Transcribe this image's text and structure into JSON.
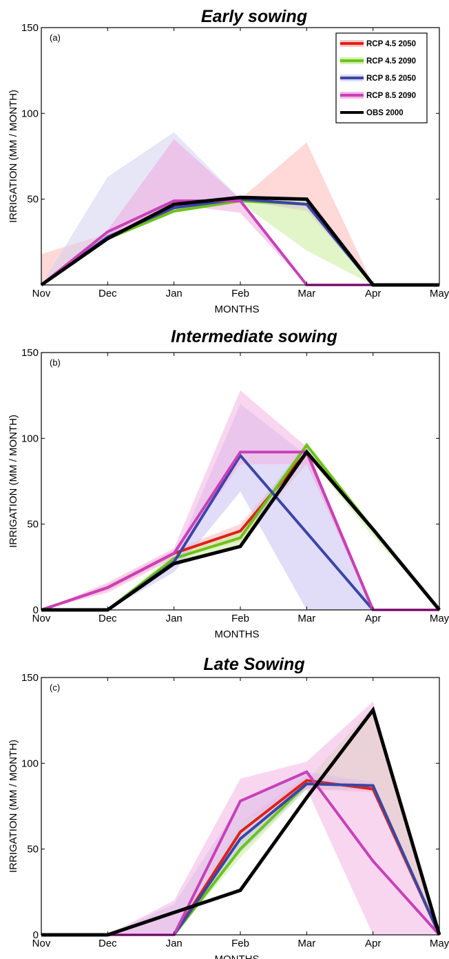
{
  "chart_data": [
    {
      "type": "line",
      "title": "Early sowing",
      "panel_label": "(a)",
      "xlabel": "MONTHS",
      "ylabel": "IRRIGATION (MM / MONTH)",
      "categories": [
        "Nov",
        "Dec",
        "Jan",
        "Feb",
        "Mar",
        "Apr",
        "May"
      ],
      "ylim": [
        0,
        150
      ],
      "yticks": [
        50,
        100,
        150
      ],
      "legend": "top-right",
      "grid": false,
      "series": [
        {
          "name": "RCP 4.5 2050",
          "color": "#e0201b",
          "band_color": "#ffb8b8",
          "values": [
            0,
            27,
            45,
            50,
            47,
            0,
            0
          ],
          "band_low": [
            0,
            27,
            43,
            49,
            43,
            0,
            0
          ],
          "band_high": [
            18,
            30,
            50,
            50,
            83,
            0,
            0
          ]
        },
        {
          "name": "RCP 4.5 2090",
          "color": "#6cc21a",
          "band_color": "#c8ec9c",
          "values": [
            0,
            27,
            43,
            49,
            47,
            0,
            0
          ],
          "band_low": [
            0,
            26,
            42,
            48,
            20,
            0,
            0
          ],
          "band_high": [
            0,
            28,
            46,
            50,
            49,
            0,
            0
          ]
        },
        {
          "name": "RCP 8.5 2050",
          "color": "#3a45a8",
          "band_color": "#d2d2f0",
          "values": [
            0,
            28,
            45,
            50,
            47,
            0,
            0
          ],
          "band_low": [
            0,
            27,
            44,
            49,
            44,
            0,
            0
          ],
          "band_high": [
            0,
            63,
            89,
            50,
            50,
            0,
            0
          ]
        },
        {
          "name": "RCP 8.5 2090",
          "color": "#c840b8",
          "band_color": "#f0a8e0",
          "values": [
            0,
            31,
            49,
            49,
            0,
            0,
            0
          ],
          "band_low": [
            0,
            28,
            47,
            42,
            0,
            0,
            0
          ],
          "band_high": [
            0,
            32,
            85,
            50,
            0,
            0,
            0
          ]
        },
        {
          "name": "OBS 2000",
          "color": "#000000",
          "values": [
            0,
            27,
            47,
            51,
            50,
            0,
            0
          ]
        }
      ]
    },
    {
      "type": "line",
      "title": "Intermediate sowing",
      "panel_label": "(b)",
      "xlabel": "MONTHS",
      "ylabel": "IRRIGATION (MM / MONTH)",
      "categories": [
        "Nov",
        "Dec",
        "Jan",
        "Feb",
        "Mar",
        "Apr",
        "May"
      ],
      "ylim": [
        0,
        150
      ],
      "yticks": [
        0,
        50,
        100,
        150
      ],
      "grid": false,
      "series": [
        {
          "name": "RCP 4.5 2050",
          "color": "#e0201b",
          "band_color": "#ffb8b8",
          "values": [
            0,
            13,
            33,
            46,
            92,
            0,
            0
          ],
          "band_low": [
            0,
            11,
            31,
            40,
            85,
            0,
            0
          ],
          "band_high": [
            0,
            15,
            35,
            50,
            95,
            0,
            0
          ]
        },
        {
          "name": "RCP 4.5 2090",
          "color": "#6cc21a",
          "band_color": "#c8ec9c",
          "values": [
            0,
            0,
            30,
            42,
            96,
            47,
            0
          ],
          "band_low": [
            0,
            0,
            27,
            38,
            90,
            43,
            0
          ],
          "band_high": [
            0,
            0,
            33,
            47,
            98,
            48,
            0
          ]
        },
        {
          "name": "RCP 8.5 2050",
          "color": "#3a45a8",
          "band_color": "#c8c0f0",
          "values": [
            0,
            0,
            28,
            90,
            45,
            0,
            0
          ],
          "band_low": [
            0,
            0,
            22,
            69,
            0,
            0,
            0
          ],
          "band_high": [
            0,
            0,
            30,
            120,
            90,
            0,
            0
          ]
        },
        {
          "name": "RCP 8.5 2090",
          "color": "#c840b8",
          "band_color": "#f4b4e4",
          "values": [
            0,
            13,
            33,
            92,
            92,
            0,
            0
          ],
          "band_low": [
            0,
            10,
            30,
            85,
            85,
            0,
            0
          ],
          "band_high": [
            0,
            16,
            36,
            128,
            95,
            0,
            0
          ]
        },
        {
          "name": "OBS 2000",
          "color": "#000000",
          "values": [
            0,
            0,
            27,
            37,
            92,
            47,
            0
          ]
        }
      ]
    },
    {
      "type": "line",
      "title": "Late Sowing",
      "panel_label": "(c)",
      "xlabel": "MONTHS",
      "ylabel": "IRRIGATION (MM / MONTH)",
      "categories": [
        "Nov",
        "Dec",
        "Jan",
        "Feb",
        "Mar",
        "Apr",
        "May"
      ],
      "ylim": [
        0,
        150
      ],
      "yticks": [
        0,
        50,
        100,
        150
      ],
      "grid": false,
      "series": [
        {
          "name": "RCP 4.5 2050",
          "color": "#e0201b",
          "band_color": "#ffb8b8",
          "values": [
            0,
            0,
            0,
            60,
            90,
            85,
            0
          ],
          "band_low": [
            0,
            0,
            0,
            55,
            85,
            83,
            0
          ],
          "band_high": [
            0,
            0,
            0,
            65,
            93,
            87,
            0
          ]
        },
        {
          "name": "RCP 4.5 2090",
          "color": "#6cc21a",
          "band_color": "#c8ec9c",
          "values": [
            0,
            0,
            0,
            50,
            88,
            87,
            0
          ],
          "band_low": [
            0,
            0,
            0,
            45,
            85,
            85,
            0
          ],
          "band_high": [
            0,
            0,
            0,
            56,
            90,
            133,
            0
          ]
        },
        {
          "name": "RCP 8.5 2050",
          "color": "#3a45a8",
          "band_color": "#c0c4ec",
          "values": [
            0,
            0,
            0,
            56,
            88,
            87,
            0
          ],
          "band_low": [
            0,
            0,
            0,
            48,
            85,
            85,
            0
          ],
          "band_high": [
            0,
            0,
            18,
            77,
            95,
            89,
            0
          ]
        },
        {
          "name": "RCP 8.5 2090",
          "color": "#c840b8",
          "band_color": "#f4b4e4",
          "values": [
            0,
            0,
            0,
            78,
            95,
            43,
            0
          ],
          "band_low": [
            0,
            0,
            0,
            65,
            85,
            0,
            0
          ],
          "band_high": [
            0,
            0,
            20,
            91,
            101,
            136,
            0
          ]
        },
        {
          "name": "OBS 2000",
          "color": "#000000",
          "values": [
            0,
            0,
            13,
            26,
            80,
            131,
            0
          ]
        }
      ]
    }
  ]
}
